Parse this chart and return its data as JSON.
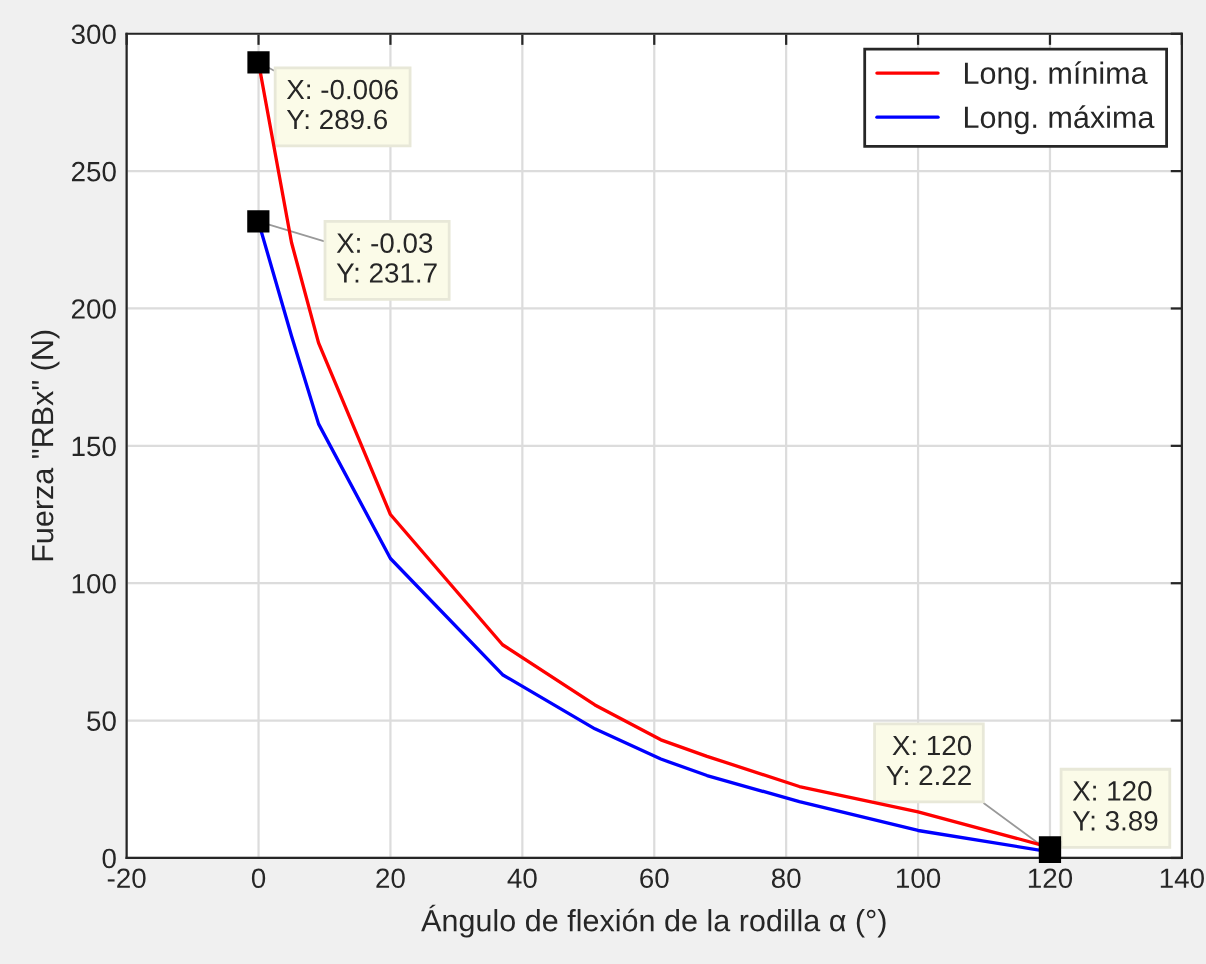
{
  "chart_data": {
    "type": "line",
    "xlabel": "Ángulo de flexión de la rodilla α (°)",
    "ylabel": "Fuerza \"RBx\" (N)",
    "xlim": [
      -20,
      140
    ],
    "xticks": [
      -20,
      0,
      20,
      40,
      60,
      80,
      100,
      120,
      140
    ],
    "ylim": [
      0,
      300
    ],
    "yticks": [
      0,
      50,
      100,
      150,
      200,
      250,
      300
    ],
    "grid": true,
    "legend": "top right",
    "marker": "none",
    "line_style": "solid",
    "series": [
      {
        "name": "Long. mínima",
        "color": "#ff0000",
        "x": [
          -0.006,
          5,
          9.1,
          20,
          37,
          51,
          61,
          68,
          82,
          100,
          120
        ],
        "values": [
          289.6,
          224,
          187.5,
          125,
          77.6,
          55.7,
          43,
          37,
          26,
          16.8,
          3.89
        ]
      },
      {
        "name": "Long. máxima",
        "color": "#0000ff",
        "x": [
          -0.03,
          5,
          9.1,
          20,
          37,
          51,
          61,
          68,
          82,
          100,
          120
        ],
        "values": [
          231.7,
          190,
          158,
          109,
          66.7,
          47,
          36,
          30,
          20.5,
          10,
          2.22
        ]
      }
    ],
    "annotations": [
      {
        "text": "X: -0.006\nY: 289.6",
        "x": -0.006,
        "y": 289.6
      },
      {
        "text": "X: -0.03\nY: 231.7",
        "x": -0.03,
        "y": 231.7
      },
      {
        "text": "X: 120\nY: 2.22",
        "x": 120,
        "y": 2.22
      },
      {
        "text": "X: 120\nY: 3.89",
        "x": 120,
        "y": 3.89
      }
    ]
  }
}
